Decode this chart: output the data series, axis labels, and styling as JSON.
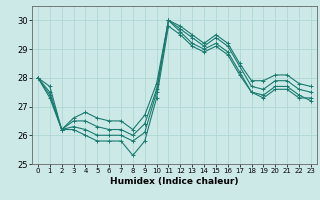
{
  "xlabel": "Humidex (Indice chaleur)",
  "bg_color": "#cce9e8",
  "grid_color": "#aad4d2",
  "line_color": "#1a7a6e",
  "xlim": [
    -0.5,
    23.5
  ],
  "ylim": [
    25.0,
    30.5
  ],
  "yticks": [
    25,
    26,
    27,
    28,
    29,
    30
  ],
  "xticks": [
    0,
    1,
    2,
    3,
    4,
    5,
    6,
    7,
    8,
    9,
    10,
    11,
    12,
    13,
    14,
    15,
    16,
    17,
    18,
    19,
    20,
    21,
    22,
    23
  ],
  "series": [
    [
      28.0,
      27.7,
      26.2,
      26.2,
      26.0,
      25.8,
      25.8,
      25.8,
      25.3,
      25.8,
      27.3,
      29.8,
      29.5,
      29.1,
      28.9,
      29.1,
      28.8,
      28.1,
      27.5,
      27.3,
      27.6,
      27.6,
      27.3,
      27.3
    ],
    [
      28.0,
      27.5,
      26.2,
      26.3,
      26.2,
      26.0,
      26.0,
      26.0,
      25.8,
      26.1,
      27.5,
      30.0,
      29.6,
      29.2,
      29.0,
      29.2,
      28.9,
      28.2,
      27.5,
      27.4,
      27.7,
      27.7,
      27.4,
      27.2
    ],
    [
      28.0,
      27.4,
      26.2,
      26.5,
      26.5,
      26.3,
      26.2,
      26.2,
      26.0,
      26.4,
      27.6,
      30.0,
      29.7,
      29.4,
      29.1,
      29.4,
      29.1,
      28.4,
      27.7,
      27.6,
      27.9,
      27.9,
      27.6,
      27.5
    ],
    [
      28.0,
      27.3,
      26.2,
      26.6,
      26.8,
      26.6,
      26.5,
      26.5,
      26.2,
      26.7,
      27.8,
      30.0,
      29.8,
      29.5,
      29.2,
      29.5,
      29.2,
      28.5,
      27.9,
      27.9,
      28.1,
      28.1,
      27.8,
      27.7
    ]
  ]
}
